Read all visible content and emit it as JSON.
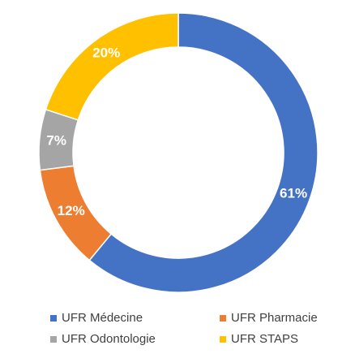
{
  "chart_data": {
    "type": "pie",
    "categories": [
      "UFR Médecine",
      "UFR Pharmacie",
      "UFR Odontologie",
      "UFR STAPS"
    ],
    "values": [
      61,
      12,
      7,
      20
    ],
    "value_labels": [
      "61%",
      "12%",
      "7%",
      "20%"
    ],
    "colors": [
      "#4472c4",
      "#ed7d31",
      "#a5a5a5",
      "#ffc000"
    ]
  }
}
